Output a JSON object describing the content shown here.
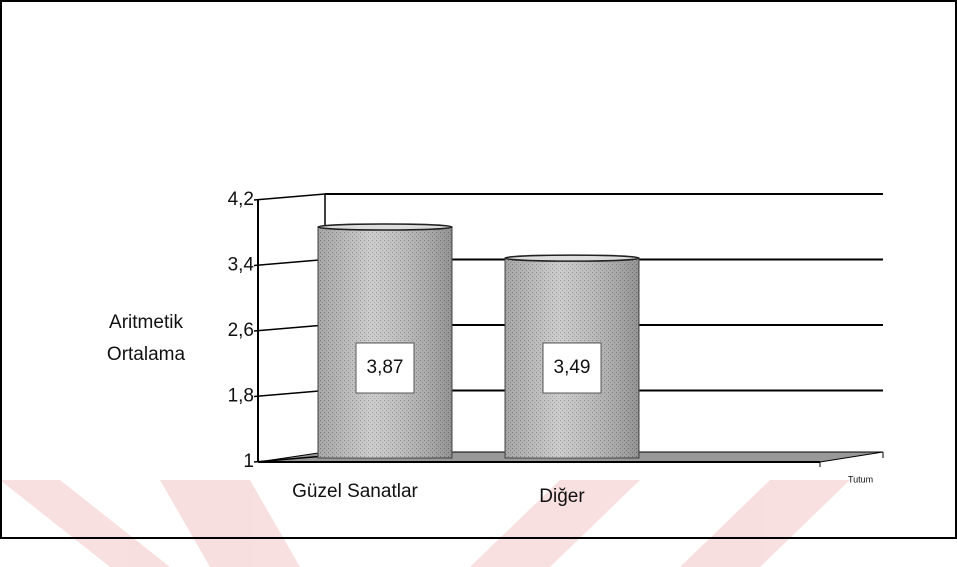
{
  "chart_data": {
    "type": "bar",
    "y_label": "Aritmetik Ortalama",
    "x_label": "Tutum",
    "categories": [
      "Güzel Sanatlar",
      "Diğer"
    ],
    "values": [
      3.87,
      3.49
    ],
    "value_labels": [
      "3,87",
      "3,49"
    ],
    "color": "#b8b8b8",
    "ylim": [
      1,
      4.2
    ],
    "yticks": [
      1,
      {
        "value": 1.8,
        "label": "1,8"
      },
      {
        "value": 2.6,
        "label": "2,6"
      },
      {
        "value": 3.4,
        "label": "3,4"
      },
      {
        "value": 4.2,
        "label": "4,2"
      }
    ],
    "grid": true
  }
}
